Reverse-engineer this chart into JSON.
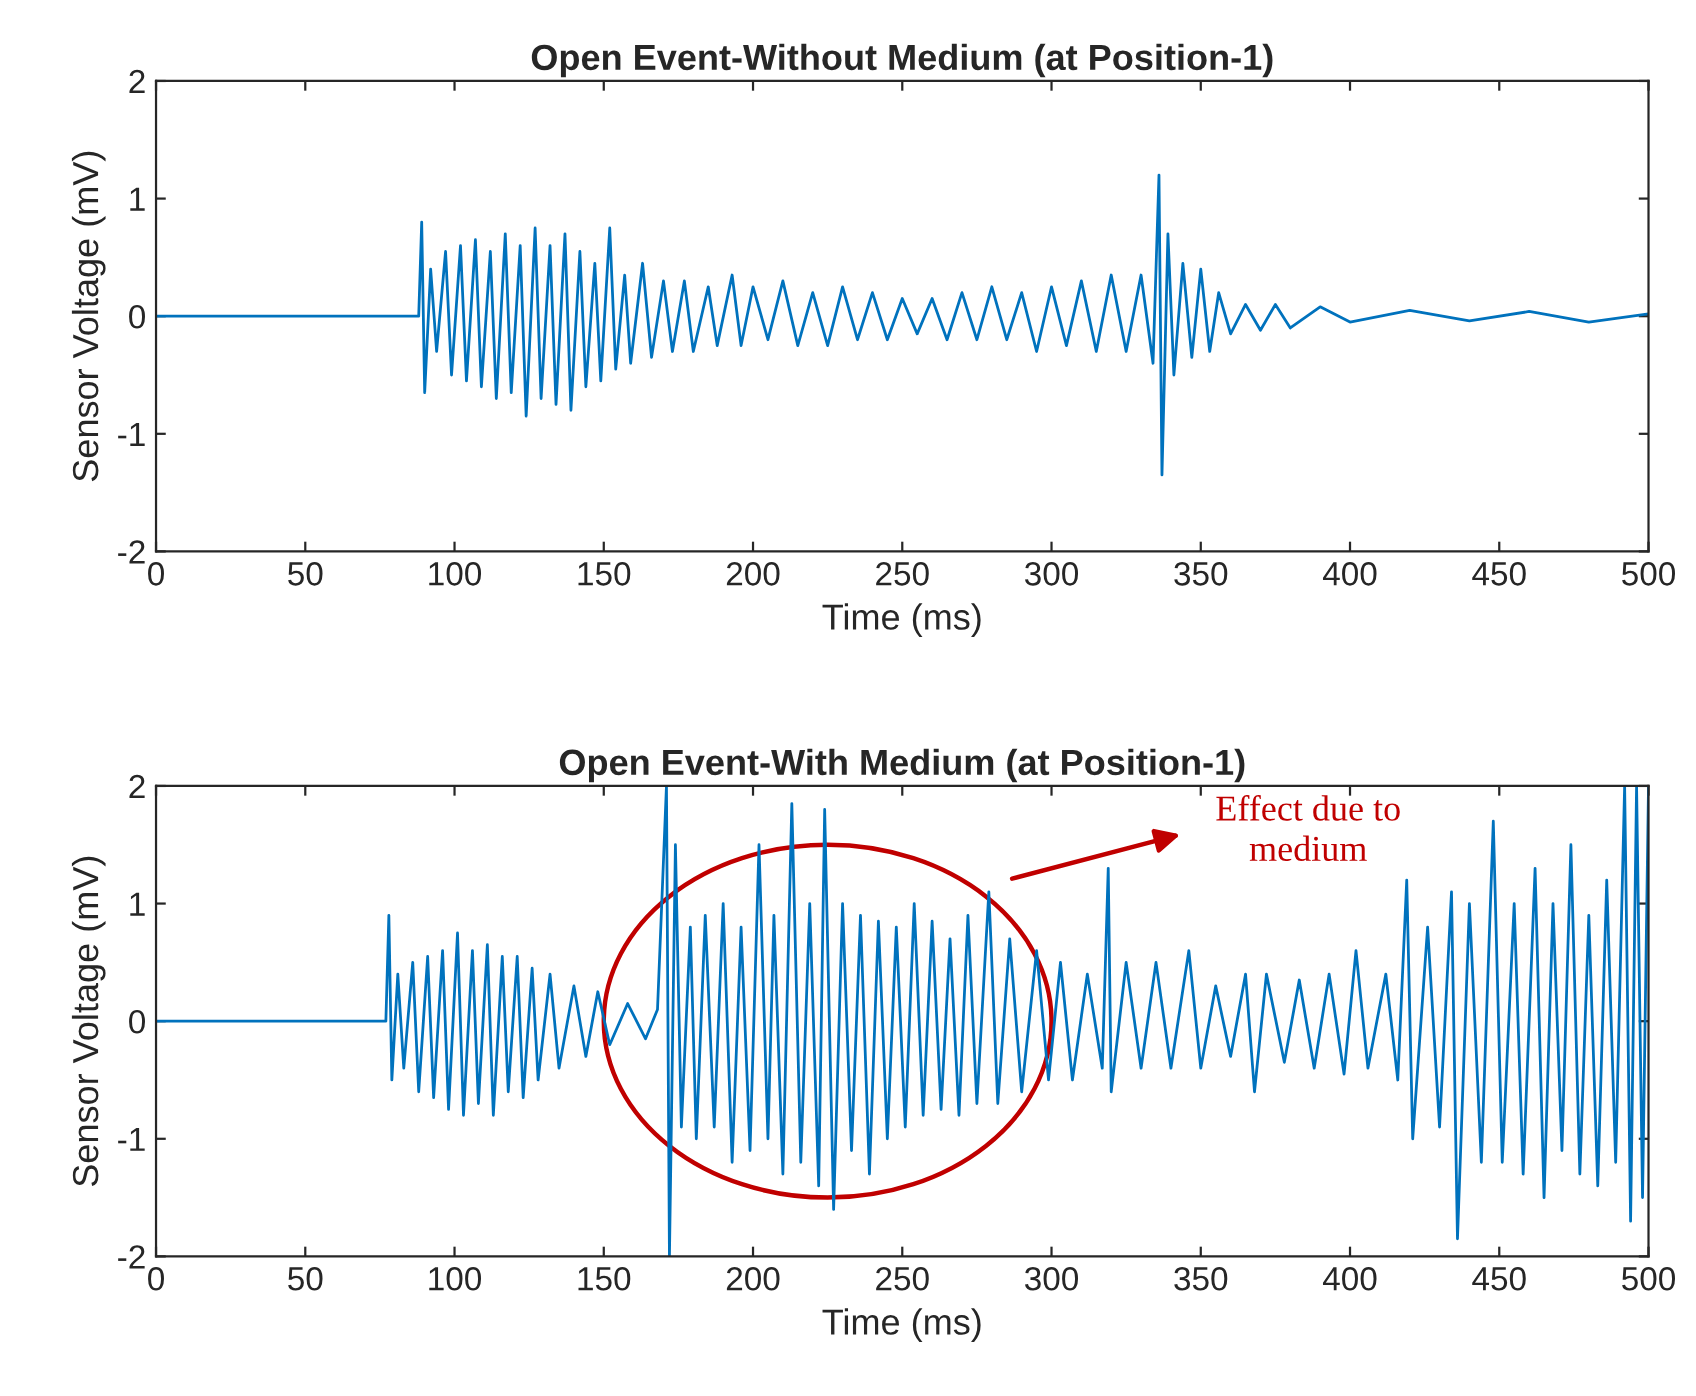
{
  "chart_data": [
    {
      "type": "line",
      "title": "Open Event-Without Medium (at Position-1)",
      "xlabel": "Time (ms)",
      "ylabel": "Sensor Voltage (mV)",
      "xlim": [
        0,
        500
      ],
      "ylim": [
        -2,
        2
      ],
      "xticks": [
        0,
        50,
        100,
        150,
        200,
        250,
        300,
        350,
        400,
        450,
        500
      ],
      "yticks": [
        -2,
        -1,
        0,
        1,
        2
      ],
      "x": [
        0,
        40,
        88,
        89,
        90,
        92,
        94,
        97,
        99,
        102,
        104,
        107,
        109,
        112,
        114,
        117,
        119,
        122,
        124,
        127,
        129,
        132,
        134,
        137,
        139,
        142,
        144,
        147,
        149,
        152,
        154,
        157,
        159,
        163,
        166,
        170,
        173,
        177,
        180,
        185,
        188,
        193,
        196,
        200,
        205,
        210,
        215,
        220,
        225,
        230,
        235,
        240,
        245,
        250,
        255,
        260,
        265,
        270,
        275,
        280,
        285,
        290,
        295,
        300,
        305,
        310,
        315,
        320,
        325,
        330,
        334,
        336,
        337,
        339,
        341,
        344,
        347,
        350,
        353,
        356,
        360,
        365,
        370,
        375,
        380,
        390,
        400,
        420,
        440,
        460,
        480,
        500
      ],
      "series": [
        {
          "color": "#0072bd",
          "values": [
            0,
            0,
            0,
            0.8,
            -0.65,
            0.4,
            -0.3,
            0.55,
            -0.5,
            0.6,
            -0.55,
            0.65,
            -0.6,
            0.55,
            -0.7,
            0.7,
            -0.65,
            0.6,
            -0.85,
            0.75,
            -0.7,
            0.6,
            -0.75,
            0.7,
            -0.8,
            0.55,
            -0.6,
            0.45,
            -0.55,
            0.75,
            -0.45,
            0.35,
            -0.4,
            0.45,
            -0.35,
            0.3,
            -0.3,
            0.3,
            -0.3,
            0.25,
            -0.25,
            0.35,
            -0.25,
            0.25,
            -0.2,
            0.3,
            -0.25,
            0.2,
            -0.25,
            0.25,
            -0.2,
            0.2,
            -0.2,
            0.15,
            -0.15,
            0.15,
            -0.2,
            0.2,
            -0.2,
            0.25,
            -0.2,
            0.2,
            -0.3,
            0.25,
            -0.25,
            0.3,
            -0.3,
            0.35,
            -0.3,
            0.35,
            -0.4,
            1.2,
            -1.35,
            0.7,
            -0.5,
            0.45,
            -0.35,
            0.4,
            -0.3,
            0.2,
            -0.15,
            0.1,
            -0.12,
            0.1,
            -0.1,
            0.08,
            -0.05,
            0.05,
            -0.04,
            0.04,
            -0.05,
            0.02
          ]
        }
      ]
    },
    {
      "type": "line",
      "title": "Open Event-With Medium (at Position-1)",
      "xlabel": "Time (ms)",
      "ylabel": "Sensor Voltage (mV)",
      "xlim": [
        0,
        500
      ],
      "ylim": [
        -2,
        2
      ],
      "xticks": [
        0,
        50,
        100,
        150,
        200,
        250,
        300,
        350,
        400,
        450,
        500
      ],
      "yticks": [
        -2,
        -1,
        0,
        1,
        2
      ],
      "annotations": [
        "Effect due to\nmedium"
      ],
      "x": [
        0,
        40,
        77,
        78,
        79,
        81,
        83,
        86,
        88,
        91,
        93,
        96,
        98,
        101,
        103,
        106,
        108,
        111,
        113,
        116,
        118,
        121,
        123,
        126,
        128,
        132,
        135,
        140,
        144,
        148,
        152,
        158,
        164,
        168,
        171,
        172,
        174,
        176,
        179,
        181,
        184,
        187,
        190,
        193,
        196,
        199,
        202,
        205,
        207,
        210,
        213,
        216,
        219,
        222,
        224,
        227,
        230,
        233,
        236,
        239,
        242,
        245,
        248,
        251,
        254,
        257,
        260,
        263,
        266,
        269,
        272,
        275,
        279,
        282,
        286,
        290,
        295,
        299,
        303,
        307,
        312,
        317,
        319,
        320,
        325,
        330,
        335,
        340,
        346,
        350,
        355,
        360,
        365,
        368,
        372,
        378,
        383,
        388,
        393,
        398,
        402,
        406,
        412,
        416,
        419,
        421,
        426,
        430,
        434,
        436,
        440,
        444,
        448,
        451,
        455,
        458,
        462,
        465,
        468,
        471,
        474,
        477,
        480,
        483,
        486,
        489,
        492,
        494,
        496,
        498,
        500
      ],
      "series": [
        {
          "color": "#0072bd",
          "values": [
            0,
            0,
            0,
            0.9,
            -0.5,
            0.4,
            -0.4,
            0.5,
            -0.6,
            0.55,
            -0.65,
            0.6,
            -0.75,
            0.75,
            -0.8,
            0.6,
            -0.7,
            0.65,
            -0.8,
            0.55,
            -0.6,
            0.55,
            -0.65,
            0.45,
            -0.5,
            0.4,
            -0.4,
            0.3,
            -0.3,
            0.25,
            -0.2,
            0.15,
            -0.15,
            0.1,
            2,
            -2,
            1.5,
            -0.9,
            0.8,
            -1.0,
            0.9,
            -0.9,
            1.0,
            -1.2,
            0.8,
            -1.1,
            1.5,
            -1.0,
            0.9,
            -1.3,
            1.85,
            -1.2,
            1.0,
            -1.4,
            1.8,
            -1.6,
            1.0,
            -1.1,
            0.9,
            -1.3,
            0.85,
            -1.0,
            0.8,
            -0.9,
            1.0,
            -0.8,
            0.85,
            -0.75,
            0.7,
            -0.8,
            0.9,
            -0.7,
            1.1,
            -0.7,
            0.7,
            -0.6,
            0.6,
            -0.5,
            0.5,
            -0.5,
            0.4,
            -0.4,
            1.3,
            -0.6,
            0.5,
            -0.4,
            0.5,
            -0.4,
            0.6,
            -0.4,
            0.3,
            -0.3,
            0.4,
            -0.6,
            0.4,
            -0.35,
            0.35,
            -0.4,
            0.4,
            -0.45,
            0.6,
            -0.4,
            0.4,
            -0.5,
            1.2,
            -1.0,
            0.8,
            -0.9,
            1.1,
            -1.85,
            1.0,
            -1.2,
            1.7,
            -1.2,
            1.0,
            -1.3,
            1.3,
            -1.5,
            1.0,
            -1.1,
            1.5,
            -1.3,
            0.9,
            -1.4,
            1.2,
            -1.2,
            2,
            -1.7,
            2,
            -1.5,
            2
          ]
        }
      ]
    }
  ]
}
